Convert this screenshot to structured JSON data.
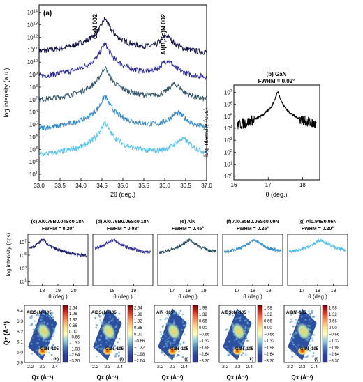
{
  "chart_data": [
    {
      "id": "a",
      "type": "line",
      "panel_label": "(a)",
      "xlabel": "2θ (deg.)",
      "ylabel": "log intensity (a.u.)",
      "xlim": [
        33.0,
        37.0
      ],
      "x_ticks": [
        "33.0",
        "33.5",
        "34.0",
        "34.5",
        "35.0",
        "35.5",
        "36.0",
        "36.5",
        "37.0"
      ],
      "y_ticks": [
        "10^1",
        "10^3",
        "10^5",
        "10^7",
        "10^9",
        "10^11",
        "10^13"
      ],
      "y_ticks_minor_labels": [
        "10^14",
        "10^12",
        "10^10",
        "10^8",
        "10^6",
        "10^4",
        "10^2"
      ],
      "annotations": [
        "GaN 002",
        "Al(B,Sc)N 002"
      ],
      "series": [
        {
          "color": "#0d0d44",
          "gan_peak": 34.57,
          "alloy_peak": 36.04,
          "log_base": 10.5
        },
        {
          "color": "#2a2a9a",
          "gan_peak": 34.57,
          "alloy_peak": 36.06,
          "log_base": 8.5
        },
        {
          "color": "#2d5166",
          "gan_peak": 34.57,
          "alloy_peak": 36.24,
          "log_base": 6.6
        },
        {
          "color": "#3088c6",
          "gan_peak": 34.57,
          "alloy_peak": 36.3,
          "log_base": 4.3
        },
        {
          "color": "#55c1ea",
          "gan_peak": 34.57,
          "alloy_peak": 36.42,
          "log_base": 2.2
        }
      ]
    },
    {
      "id": "b",
      "type": "line",
      "title": "(b) GaN",
      "subtitle": "FWHM = 0.02°",
      "xlabel": "θ (deg.)",
      "ylabel": "log intensity (cps)",
      "xlim": [
        16,
        18.5
      ],
      "x_ticks": [
        "16",
        "17",
        "18"
      ],
      "y_ticks": [
        "10^0",
        "10^1",
        "10^2",
        "10^3",
        "10^4",
        "10^5",
        "10^6",
        "10^7"
      ],
      "series": [
        {
          "color": "#000000",
          "peak_x": 17.28,
          "peak_log": 7.0,
          "floor_log": 0.3
        }
      ]
    },
    {
      "id": "c-g",
      "type": "line",
      "ylabel": "log intensity (cps)",
      "y_ticks": [
        "10^1",
        "10^3",
        "10^5",
        "10^7"
      ],
      "xlabel": "θ (deg.)",
      "panels": [
        {
          "title": "(c) Al0.78B0.04Sc0.18N",
          "subtitle": "FWHM = 0.20°",
          "color": "#1a1a6e",
          "x_ticks": [
            "18",
            "19",
            "20"
          ],
          "peak_x": 18.02
        },
        {
          "title": "(d) Al0.76B0.06Sc0.18N",
          "subtitle": "FWHM = 0.08°",
          "color": "#2b2b9e",
          "x_ticks": [
            "18",
            "19"
          ],
          "peak_x": 18.02
        },
        {
          "title": "(e) AlN",
          "subtitle": "FWHM = 0.45°",
          "color": "#2a4f63",
          "x_ticks": [
            "17",
            "18",
            "19"
          ],
          "peak_x": 18.1
        },
        {
          "title": "(f) Al0.85B0.06Sc0.09N",
          "subtitle": "FWHM = 0.25°",
          "color": "#2f8fcf",
          "x_ticks": [
            "17",
            "18",
            "19"
          ],
          "peak_x": 18.1
        },
        {
          "title": "(g) Al0.94B0.06N",
          "subtitle": "FWHM = 0.20°",
          "color": "#4fc0ea",
          "x_ticks": [
            "17",
            "18",
            "19"
          ],
          "peak_x": 18.2
        }
      ]
    },
    {
      "id": "h-l",
      "type": "heatmap",
      "xlabel": "Qx (Å⁻¹)",
      "ylabel": "Qz (Å⁻¹)",
      "x_ticks": [
        "2.2",
        "2.3",
        "2.4"
      ],
      "y_ticks": [
        "5.9",
        "6.0",
        "6.1",
        "6.2",
        "6.3",
        "6.4"
      ],
      "panels": [
        {
          "label": "(h)",
          "top_label": "AlBScN -105",
          "bottom_label": "GaN -105",
          "colorbar": [
            "2.64",
            "1.98",
            "1.32",
            "0.66",
            "0.00",
            "−0.66",
            "−1.32",
            "−1.98",
            "−2.64",
            "−3.30"
          ]
        },
        {
          "label": "(i)",
          "top_label": "AlBScN -105",
          "bottom_label": "GaN -105",
          "colorbar": [
            "2.64",
            "1.98",
            "1.32",
            "0.66",
            "0.00",
            "−0.66",
            "−1.32",
            "−1.98",
            "−2.64"
          ]
        },
        {
          "label": "(j)",
          "top_label": "AlN -105",
          "bottom_label": "GaN -105",
          "colorbar": [
            "1.98",
            "1.32",
            "0.66",
            "0.00",
            "−0.66",
            "−1.32",
            "−1.98",
            "−2.64",
            "−3.30"
          ]
        },
        {
          "label": "(k)",
          "top_label": "AlBScN -105",
          "bottom_label": "GaN -105",
          "colorbar": [
            "1.98",
            "1.32",
            "0.66",
            "0.00",
            "−0.66",
            "−1.32",
            "−1.98",
            "−2.64",
            "−3.30"
          ]
        },
        {
          "label": "(l)",
          "top_label": "AlBN -105",
          "bottom_label": "GaN -105",
          "colorbar": [
            "1.98",
            "1.32",
            "0.66",
            "0.00",
            "−0.66",
            "−1.32",
            "−1.98",
            "−2.64",
            "−3.30"
          ]
        }
      ]
    }
  ]
}
